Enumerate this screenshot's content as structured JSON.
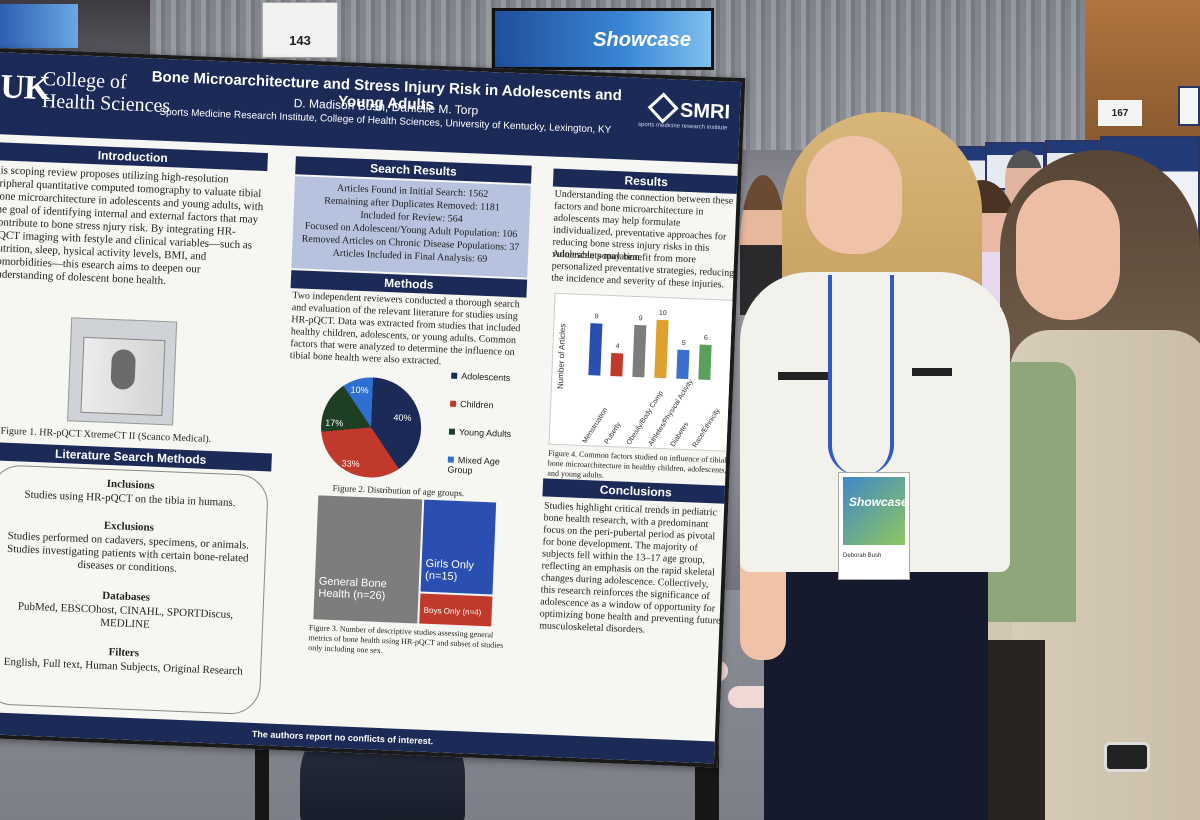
{
  "scene": {
    "screen_text": "Showcase",
    "sign_left": "143",
    "sign_right": "167"
  },
  "poster": {
    "logo": "UK",
    "college_line1": "College of",
    "college_line2": "Health Sciences",
    "title": "Bone Microarchitecture and Stress Injury Risk in Adolescents and Young Adults",
    "authors": "D. Madison Bush, Danielle M. Torp",
    "affiliation": "Sports Medicine Research Institute, College of Health Sciences, University of Kentucky, Lexington, KY",
    "smri": "SMRI",
    "smri_sub": "sports medicine research institute",
    "intro_head": "Introduction",
    "intro_text": "his scoping review proposes utilizing high-resolution eripheral quantitative computed tomography to valuate tibial bone microarchitecture in adolescents and young adults, with the goal of identifying internal and external factors that may contribute to bone stress njury risk. By integrating HR-pQCT imaging with festyle and clinical variables—such as nutrition, sleep, hysical activity levels, BMI, and comorbidities—this esearch aims to deepen our understanding of dolescent bone health.",
    "fig1_caption": "Figure 1. HR-pQCT XtremeCT II (Scanco Medical).",
    "lit_head": "Literature Search Methods",
    "incl_head": "Inclusions",
    "incl_text": "Studies using HR-pQCT on the tibia in humans.",
    "excl_head": "Exclusions",
    "excl_text": "Studies performed on cadavers, specimens, or animals. Studies investigating patients with certain bone-related diseases or conditions.",
    "db_head": "Databases",
    "db_text": "PubMed, EBSCOhost, CINAHL, SPORTDiscus, MEDLINE",
    "filters_head": "Filters",
    "filters_text": "English, Full text, Human Subjects, Original Research",
    "search_head": "Search Results",
    "search_lines": [
      "Articles Found in Initial Search: 1562",
      "Remaining after Duplicates Removed: 1181",
      "Included for Review: 564",
      "Focused on Adolescent/Young Adult Population: 106",
      "Removed Articles on Chronic Disease Populations: 37",
      "Articles Included in Final Analysis: 69"
    ],
    "methods_head": "Methods",
    "methods_text": "Two independent reviewers conducted a thorough search and evaluation of the relevant literature for studies using HR-pQCT. Data was extracted from studies that included healthy children, adolescents, or young adults. Common factors that were analyzed to determine the influence on tibial bone health were also extracted.",
    "fig2_caption": "Figure 2. Distribution of age groups.",
    "pie_labels": [
      "40%",
      "33%",
      "17%",
      "10%"
    ],
    "legend": [
      "Adolescents",
      "Children",
      "Young Adults",
      "Mixed Age Group"
    ],
    "tm_general": "General Bone Health (n=26)",
    "tm_girls": "Girls Only (n=15)",
    "tm_boys": "Boys Only (n=4)",
    "fig3_caption": "Figure 3. Number of descriptive studies assessing general metrics of bone health using HR-pQCT and subset of studies only including one sex.",
    "results_head": "Results",
    "results_text1": "Understanding the connection between these factors and bone microarchitecture in adolescents may help formulate individualized, preventative approaches for reducing bone stress injury risks in this vulnerable population.",
    "results_text2": "Adolescents may benefit from more personalized preventative strategies, reducing the incidence and severity of these injuries.",
    "bar_ylabel": "Number of Articles",
    "fig4_caption": "Figure 4. Common factors studied on influence of tibial bone microarchitecture in healthy children, adolescents, and young adults.",
    "conclusions_head": "Conclusions",
    "conclusions_text": "Studies highlight critical trends in pediatric bone health research, with a predominant focus on the peri-pubertal period as pivotal for bone development. The majority of subjects fell within the 13–17 age group, reflecting an emphasis on the rapid skeletal changes during adolescence. Collectively, this research reinforces the significance of adolescence as a window of opportunity for optimizing bone health and preventing future musculoskeletal disorders.",
    "footer": "The authors report no conflicts of interest."
  },
  "badge": {
    "showcase": "Showcase",
    "name": "Deborah Bush"
  },
  "chart_data": [
    {
      "type": "pie",
      "categories": [
        "Adolescents",
        "Children",
        "Young Adults",
        "Mixed Age Group"
      ],
      "values": [
        40,
        33,
        17,
        10
      ],
      "colors": [
        "#1c2a58",
        "#c0392b",
        "#1f3f24",
        "#2f6fd1"
      ]
    },
    {
      "type": "bar",
      "categories": [
        "Menstruation",
        "Puberty",
        "Obesity/Body Comp",
        "Athletes/Physical Activity",
        "Diabetes",
        "Race/Ethnicity"
      ],
      "values": [
        9,
        4,
        9,
        10,
        5,
        6
      ],
      "colors": [
        "#2a4fb0",
        "#c0392b",
        "#7d7d7d",
        "#e0a030",
        "#3b6fd0",
        "#5aa05a"
      ],
      "ylabel": "Number of Articles"
    }
  ]
}
